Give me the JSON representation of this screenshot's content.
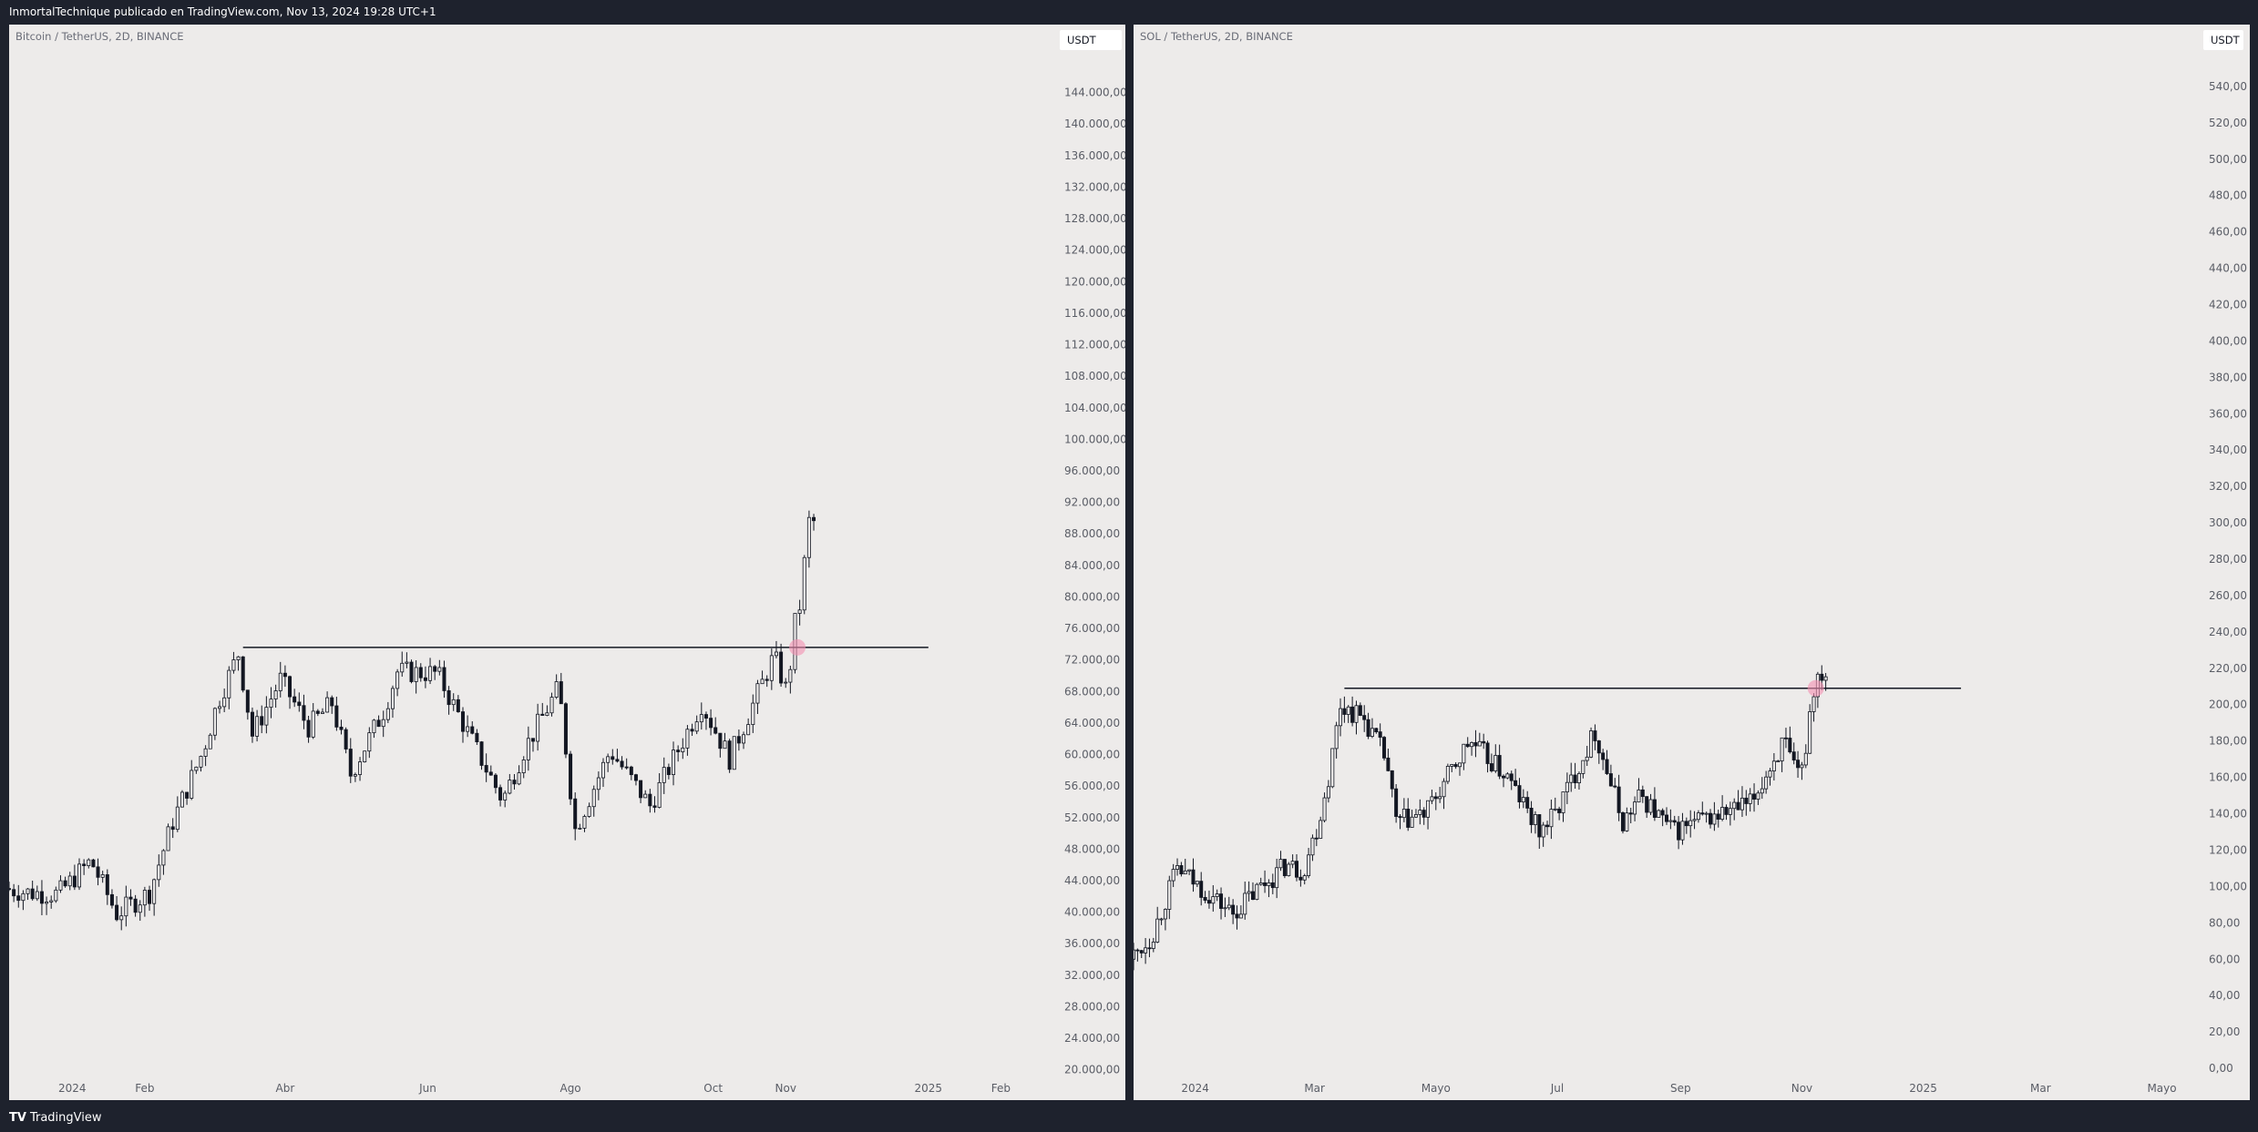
{
  "header": {
    "publisher_line": "InmortalTechnique publicado en TradingView.com, Nov 13, 2024 19:28 UTC+1"
  },
  "footer": {
    "brand": "TradingView",
    "brand_icon": "tradingview-logo-icon"
  },
  "colors": {
    "app_background": "#1e222d",
    "chart_background": "#edebea",
    "candle": "#131722",
    "level_line": "#131722",
    "breakout_marker": "#f48fb1",
    "axis_text": "#5a5d66"
  },
  "charts": [
    {
      "id": "left",
      "legend": "Bitcoin / TetherUS, 2D, BINANCE",
      "currency_button": "USDT"
    },
    {
      "id": "right",
      "legend": "SOL / TetherUS, 2D, BINANCE",
      "currency_button": "USDT"
    }
  ],
  "chart_data": [
    {
      "type": "candlestick",
      "title": "Bitcoin / TetherUS, 2D, BINANCE",
      "symbol": "BTCUSDT",
      "interval": "2D",
      "exchange": "BINANCE",
      "currency": "USDT",
      "ylim": [
        18000,
        148000
      ],
      "y_ticks": [
        20000,
        24000,
        28000,
        32000,
        36000,
        40000,
        44000,
        48000,
        52000,
        56000,
        60000,
        64000,
        68000,
        72000,
        76000,
        80000,
        84000,
        88000,
        92000,
        96000,
        100000,
        104000,
        108000,
        112000,
        116000,
        120000,
        124000,
        128000,
        132000,
        136000,
        140000,
        144000
      ],
      "y_tick_labels": [
        "20.000,00",
        "24.000,00",
        "28.000,00",
        "32.000,00",
        "36.000,00",
        "40.000,00",
        "44.000,00",
        "48.000,00",
        "52.000,00",
        "56.000,00",
        "60.000,00",
        "64.000,00",
        "68.000,00",
        "72.000,00",
        "76.000,00",
        "80.000,00",
        "84.000,00",
        "88.000,00",
        "92.000,00",
        "96.000,00",
        "100.000,00",
        "104.000,00",
        "108.000,00",
        "112.000,00",
        "116.000,00",
        "120.000,00",
        "124.000,00",
        "128.000,00",
        "132.000,00",
        "136.000,00",
        "140.000,00",
        "144.000,00"
      ],
      "x_range": [
        "2023-12-05",
        "2025-02-25"
      ],
      "x_ticks": [
        {
          "date": "2024-01-01",
          "label": "2024"
        },
        {
          "date": "2024-02-01",
          "label": "Feb"
        },
        {
          "date": "2024-04-01",
          "label": "Abr"
        },
        {
          "date": "2024-06-01",
          "label": "Jun"
        },
        {
          "date": "2024-08-01",
          "label": "Ago"
        },
        {
          "date": "2024-10-01",
          "label": "Oct"
        },
        {
          "date": "2024-11-01",
          "label": "Nov"
        },
        {
          "date": "2025-01-01",
          "label": "2025"
        },
        {
          "date": "2025-02-01",
          "label": "Feb"
        }
      ],
      "price_path": [
        [
          "2023-12-05",
          43000
        ],
        [
          "2023-12-15",
          42500
        ],
        [
          "2023-12-28",
          42300
        ],
        [
          "2024-01-11",
          46500
        ],
        [
          "2024-01-22",
          39800
        ],
        [
          "2024-02-05",
          42500
        ],
        [
          "2024-02-15",
          51500
        ],
        [
          "2024-02-28",
          60500
        ],
        [
          "2024-03-05",
          66500
        ],
        [
          "2024-03-14",
          72800
        ],
        [
          "2024-03-20",
          62500
        ],
        [
          "2024-04-01",
          69500
        ],
        [
          "2024-04-13",
          63500
        ],
        [
          "2024-04-23",
          66500
        ],
        [
          "2024-05-01",
          57500
        ],
        [
          "2024-05-15",
          65500
        ],
        [
          "2024-05-21",
          70500
        ],
        [
          "2024-06-07",
          70300
        ],
        [
          "2024-06-24",
          60500
        ],
        [
          "2024-07-05",
          54200
        ],
        [
          "2024-07-14",
          60500
        ],
        [
          "2024-07-29",
          68500
        ],
        [
          "2024-08-05",
          50500
        ],
        [
          "2024-08-20",
          60500
        ],
        [
          "2024-09-06",
          53500
        ],
        [
          "2024-09-28",
          66500
        ],
        [
          "2024-10-10",
          59500
        ],
        [
          "2024-10-29",
          72500
        ],
        [
          "2024-11-04",
          67500
        ],
        [
          "2024-11-06",
          75500
        ],
        [
          "2024-11-10",
          80000
        ],
        [
          "2024-11-12",
          88500
        ],
        [
          "2024-11-13",
          89500
        ]
      ],
      "horizontal_level": {
        "value": 73600,
        "from": "2024-03-14",
        "to": "2025-01-01"
      },
      "marker": {
        "date": "2024-11-06",
        "value": 73600
      }
    },
    {
      "type": "candlestick",
      "title": "SOL / TetherUS, 2D, BINANCE",
      "symbol": "SOLUSDT",
      "interval": "2D",
      "exchange": "BINANCE",
      "currency": "USDT",
      "ylim": [
        -12,
        560
      ],
      "y_ticks": [
        0,
        20,
        40,
        60,
        80,
        100,
        120,
        140,
        160,
        180,
        200,
        220,
        240,
        260,
        280,
        300,
        320,
        340,
        360,
        380,
        400,
        420,
        440,
        460,
        480,
        500,
        520,
        540
      ],
      "y_tick_labels": [
        "0,00",
        "20,00",
        "40,00",
        "60,00",
        "80,00",
        "100,00",
        "120,00",
        "140,00",
        "160,00",
        "180,00",
        "200,00",
        "220,00",
        "240,00",
        "260,00",
        "280,00",
        "300,00",
        "320,00",
        "340,00",
        "360,00",
        "380,00",
        "400,00",
        "420,00",
        "440,00",
        "460,00",
        "480,00",
        "500,00",
        "520,00",
        "540,00"
      ],
      "x_range": [
        "2023-12-01",
        "2025-05-20"
      ],
      "x_ticks": [
        {
          "date": "2024-01-01",
          "label": "2024"
        },
        {
          "date": "2024-03-01",
          "label": "Mar"
        },
        {
          "date": "2024-05-01",
          "label": "Mayo"
        },
        {
          "date": "2024-07-01",
          "label": "Jul"
        },
        {
          "date": "2024-09-01",
          "label": "Sep"
        },
        {
          "date": "2024-11-01",
          "label": "Nov"
        },
        {
          "date": "2025-01-01",
          "label": "2025"
        },
        {
          "date": "2025-03-01",
          "label": "Mar"
        },
        {
          "date": "2025-05-01",
          "label": "Mayo"
        }
      ],
      "price_path": [
        [
          "2023-12-01",
          60
        ],
        [
          "2023-12-12",
          72
        ],
        [
          "2023-12-25",
          110
        ],
        [
          "2024-01-05",
          100
        ],
        [
          "2024-01-22",
          85
        ],
        [
          "2024-02-05",
          100
        ],
        [
          "2024-02-18",
          112
        ],
        [
          "2024-02-26",
          108
        ],
        [
          "2024-03-05",
          135
        ],
        [
          "2024-03-10",
          160
        ],
        [
          "2024-03-16",
          200
        ],
        [
          "2024-03-28",
          192
        ],
        [
          "2024-04-08",
          170
        ],
        [
          "2024-04-13",
          135
        ],
        [
          "2024-04-28",
          140
        ],
        [
          "2024-05-20",
          180
        ],
        [
          "2024-06-08",
          160
        ],
        [
          "2024-06-24",
          130
        ],
        [
          "2024-07-02",
          140
        ],
        [
          "2024-07-22",
          185
        ],
        [
          "2024-08-05",
          135
        ],
        [
          "2024-08-14",
          150
        ],
        [
          "2024-08-30",
          130
        ],
        [
          "2024-09-10",
          135
        ],
        [
          "2024-10-08",
          145
        ],
        [
          "2024-10-25",
          180
        ],
        [
          "2024-10-31",
          160
        ],
        [
          "2024-11-04",
          165
        ],
        [
          "2024-11-06",
          190
        ],
        [
          "2024-11-10",
          215
        ],
        [
          "2024-11-13",
          218
        ]
      ],
      "horizontal_level": {
        "value": 209,
        "from": "2024-03-16",
        "to": "2025-01-20"
      },
      "marker": {
        "date": "2024-11-08",
        "value": 209
      }
    }
  ]
}
